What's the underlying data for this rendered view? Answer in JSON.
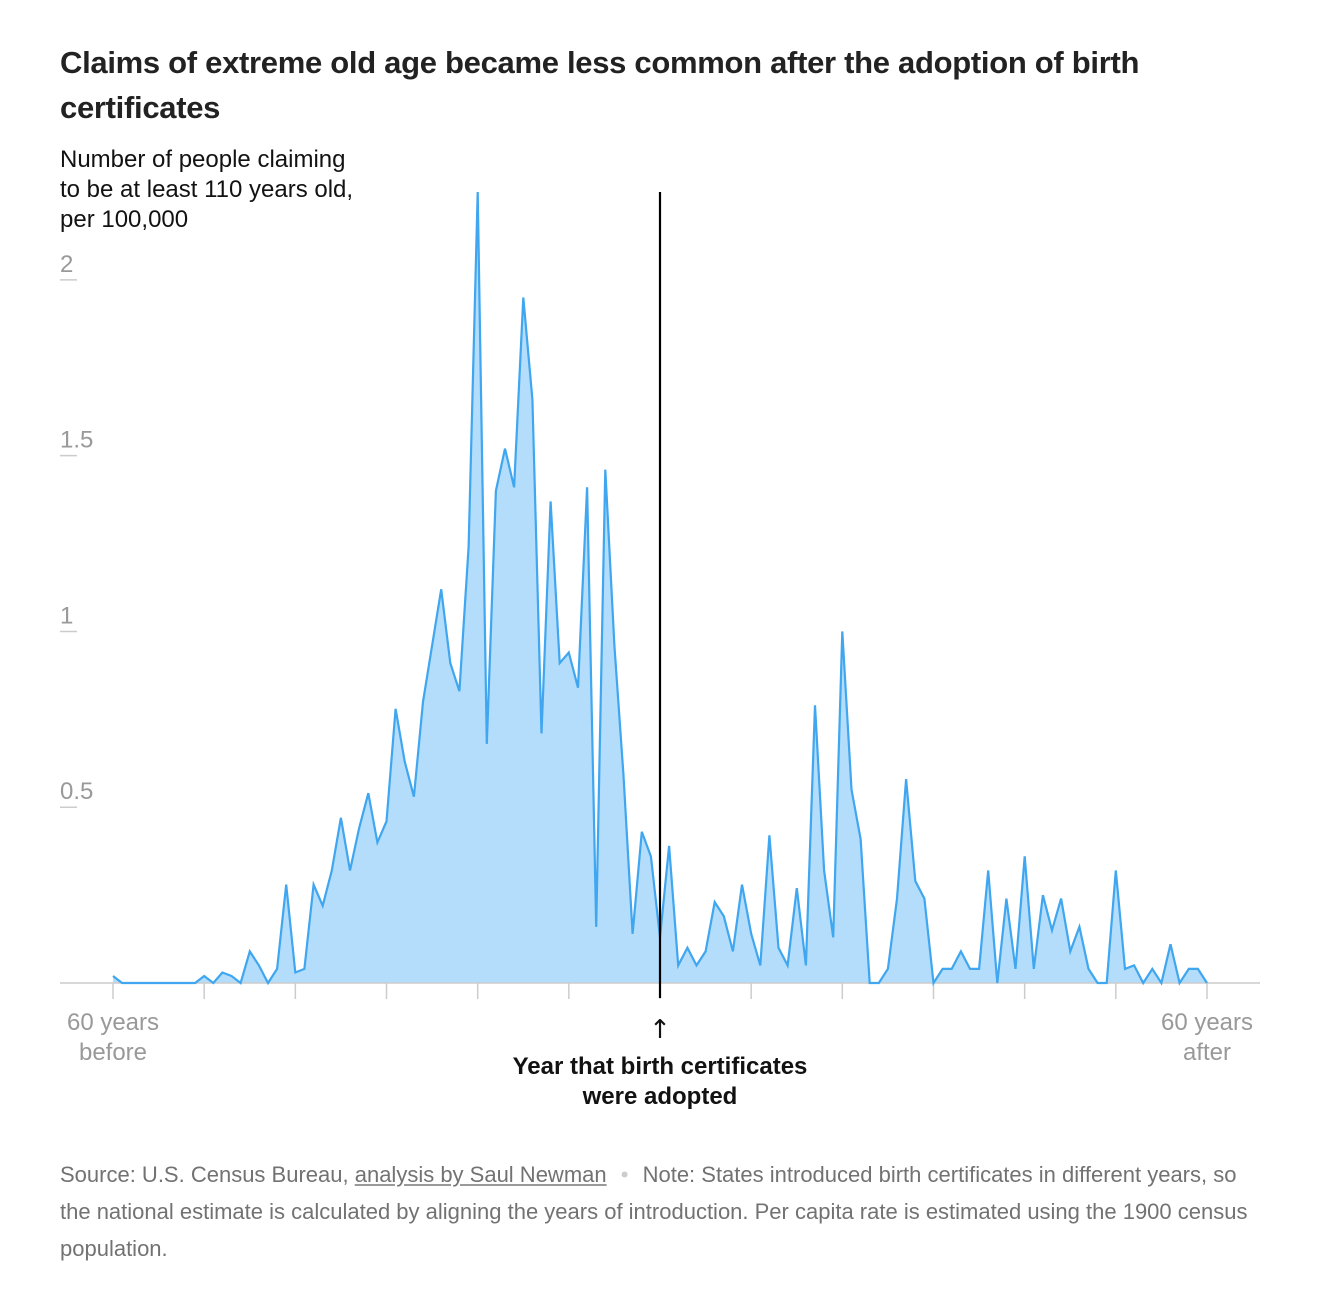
{
  "title": "Claims of extreme old age became less common after the adoption of birth certificates",
  "footer": {
    "source_label": "Source: U.S. Census Bureau,",
    "source_link": "analysis by Saul Newman",
    "separator": "•",
    "note": "Note: States introduced birth certificates in different years, so the national estimate is calculated by aligning the years of introduction. Per capita rate is estimated using the 1900 census population."
  },
  "colors": {
    "line": "#3fa6ef",
    "fill": "#b3ddfb",
    "marker": "#000000",
    "axis_text": "#999999"
  },
  "chart_data": {
    "type": "area",
    "title": "Claims of extreme old age became less common after the adoption of birth certificates",
    "ylabel": [
      "Number of people claiming",
      "to be at least 110 years old,",
      "per 100,000"
    ],
    "xlabel": "",
    "xlim": [
      -60,
      60
    ],
    "ylim": [
      0,
      2.25
    ],
    "y_ticks": [
      {
        "value": 0.5,
        "label": "0.5"
      },
      {
        "value": 1,
        "label": "1"
      },
      {
        "value": 1.5,
        "label": "1.5"
      },
      {
        "value": 2,
        "label": "2"
      }
    ],
    "x_tick_values": [
      -60,
      -50,
      -40,
      -30,
      -20,
      -10,
      0,
      10,
      20,
      30,
      40,
      50,
      60
    ],
    "x_tick_labels": [
      {
        "value": -60,
        "lines": [
          "60 years",
          "before"
        ]
      },
      {
        "value": 60,
        "lines": [
          "60 years",
          "after"
        ]
      }
    ],
    "annotation": {
      "x": 0,
      "arrow": "↑",
      "lines": [
        "Year that birth certificates",
        "were adopted"
      ]
    },
    "grid": false,
    "series": [
      {
        "x": [
          -60,
          -59,
          -58,
          -57,
          -56,
          -55,
          -54,
          -53,
          -52,
          -51,
          -50,
          -49,
          -48,
          -47,
          -46,
          -45,
          -44,
          -43,
          -42,
          -41,
          -40,
          -39,
          -38,
          -37,
          -36,
          -35,
          -34,
          -33,
          -32,
          -31,
          -30,
          -29,
          -28,
          -27,
          -26,
          -25,
          -24,
          -23,
          -22,
          -21,
          -20,
          -19,
          -18,
          -17,
          -16,
          -15,
          -14,
          -13,
          -12,
          -11,
          -10,
          -9,
          -8,
          -7,
          -6,
          -5,
          -4,
          -3,
          -2,
          -1,
          0,
          1,
          2,
          3,
          4,
          5,
          6,
          7,
          8,
          9,
          10,
          11,
          12,
          13,
          14,
          15,
          16,
          17,
          18,
          19,
          20,
          21,
          22,
          23,
          24,
          25,
          26,
          27,
          28,
          29,
          30,
          31,
          32,
          33,
          34,
          35,
          36,
          37,
          38,
          39,
          40,
          41,
          42,
          43,
          44,
          45,
          46,
          47,
          48,
          49,
          50,
          51,
          52,
          53,
          54,
          55,
          56,
          57,
          58,
          59,
          60
        ],
        "y": [
          0.02,
          0,
          0,
          0,
          0,
          0,
          0,
          0,
          0,
          0,
          0.02,
          0,
          0.03,
          0.02,
          0,
          0.09,
          0.05,
          0,
          0.04,
          0.28,
          0.03,
          0.04,
          0.28,
          0.22,
          0.32,
          0.47,
          0.32,
          0.44,
          0.54,
          0.4,
          0.46,
          0.78,
          0.63,
          0.53,
          0.8,
          0.96,
          1.12,
          0.91,
          0.83,
          1.24,
          2.25,
          0.68,
          1.4,
          1.52,
          1.41,
          1.95,
          1.66,
          0.71,
          1.37,
          0.91,
          0.94,
          0.84,
          1.41,
          0.16,
          1.46,
          0.96,
          0.59,
          0.14,
          0.43,
          0.36,
          0.13,
          0.39,
          0.05,
          0.1,
          0.05,
          0.09,
          0.23,
          0.19,
          0.09,
          0.28,
          0.14,
          0.05,
          0.42,
          0.1,
          0.05,
          0.27,
          0.05,
          0.79,
          0.32,
          0.13,
          1.0,
          0.55,
          0.41,
          0,
          0,
          0.04,
          0.24,
          0.58,
          0.29,
          0.24,
          0,
          0.04,
          0.04,
          0.09,
          0.04,
          0.04,
          0.32,
          0,
          0.24,
          0.04,
          0.36,
          0.04,
          0.25,
          0.15,
          0.24,
          0.09,
          0.16,
          0.04,
          0,
          0,
          0.32,
          0.04,
          0.05,
          0,
          0.04,
          0,
          0.11,
          0,
          0.04,
          0.04,
          0
        ]
      }
    ]
  }
}
